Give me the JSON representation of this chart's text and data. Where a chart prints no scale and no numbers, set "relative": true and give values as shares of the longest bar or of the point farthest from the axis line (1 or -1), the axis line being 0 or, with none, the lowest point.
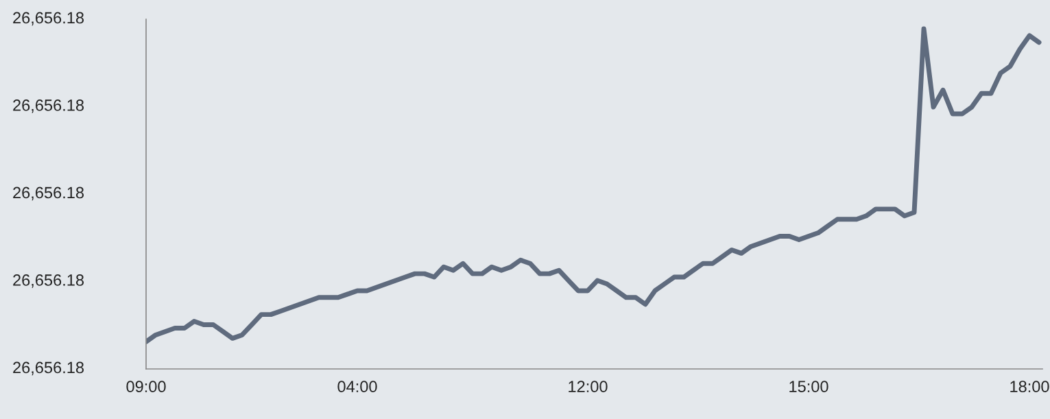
{
  "chart_data": {
    "type": "line",
    "relative": true,
    "categories": [
      "09:00",
      null,
      null,
      null,
      null,
      null,
      null,
      null,
      null,
      null,
      null,
      null,
      null,
      null,
      null,
      null,
      null,
      null,
      null,
      null,
      null,
      null,
      "04:00",
      null,
      null,
      null,
      null,
      null,
      null,
      null,
      null,
      null,
      null,
      null,
      null,
      null,
      null,
      null,
      null,
      null,
      null,
      null,
      null,
      null,
      null,
      null,
      "12:00",
      null,
      null,
      null,
      null,
      null,
      null,
      null,
      null,
      null,
      null,
      null,
      null,
      null,
      null,
      null,
      null,
      null,
      null,
      null,
      null,
      null,
      null,
      "15:00",
      null,
      null,
      null,
      null,
      null,
      null,
      null,
      null,
      null,
      null,
      null,
      null,
      null,
      null,
      null,
      null,
      null,
      null,
      null,
      null,
      null,
      null,
      "18:00",
      null
    ],
    "series": [
      {
        "color": "#5f6b7e",
        "values": [
          0.08,
          0.1,
          0.11,
          0.12,
          0.12,
          0.14,
          0.13,
          0.13,
          0.11,
          0.09,
          0.1,
          0.13,
          0.16,
          0.16,
          0.17,
          0.18,
          0.19,
          0.2,
          0.21,
          0.21,
          0.21,
          0.22,
          0.23,
          0.23,
          0.24,
          0.25,
          0.26,
          0.27,
          0.28,
          0.28,
          0.27,
          0.3,
          0.29,
          0.31,
          0.28,
          0.28,
          0.3,
          0.29,
          0.3,
          0.32,
          0.31,
          0.28,
          0.28,
          0.29,
          0.26,
          0.23,
          0.23,
          0.26,
          0.25,
          0.23,
          0.21,
          0.21,
          0.19,
          0.23,
          0.25,
          0.27,
          0.27,
          0.29,
          0.31,
          0.31,
          0.33,
          0.35,
          0.34,
          0.36,
          0.37,
          0.38,
          0.39,
          0.39,
          0.38,
          0.39,
          0.4,
          0.42,
          0.44,
          0.44,
          0.44,
          0.45,
          0.47,
          0.47,
          0.47,
          0.45,
          0.46,
          1,
          0.77,
          0.82,
          0.75,
          0.75,
          0.77,
          0.81,
          0.81,
          0.87,
          0.89,
          0.94,
          0.98,
          0.96
        ]
      }
    ],
    "annotations": [
      "26,656.18",
      "26,656.18",
      "26,656.18",
      "26,656.18",
      "26,656.18"
    ],
    "grid": false,
    "marker": "none",
    "line_style": "solid"
  }
}
